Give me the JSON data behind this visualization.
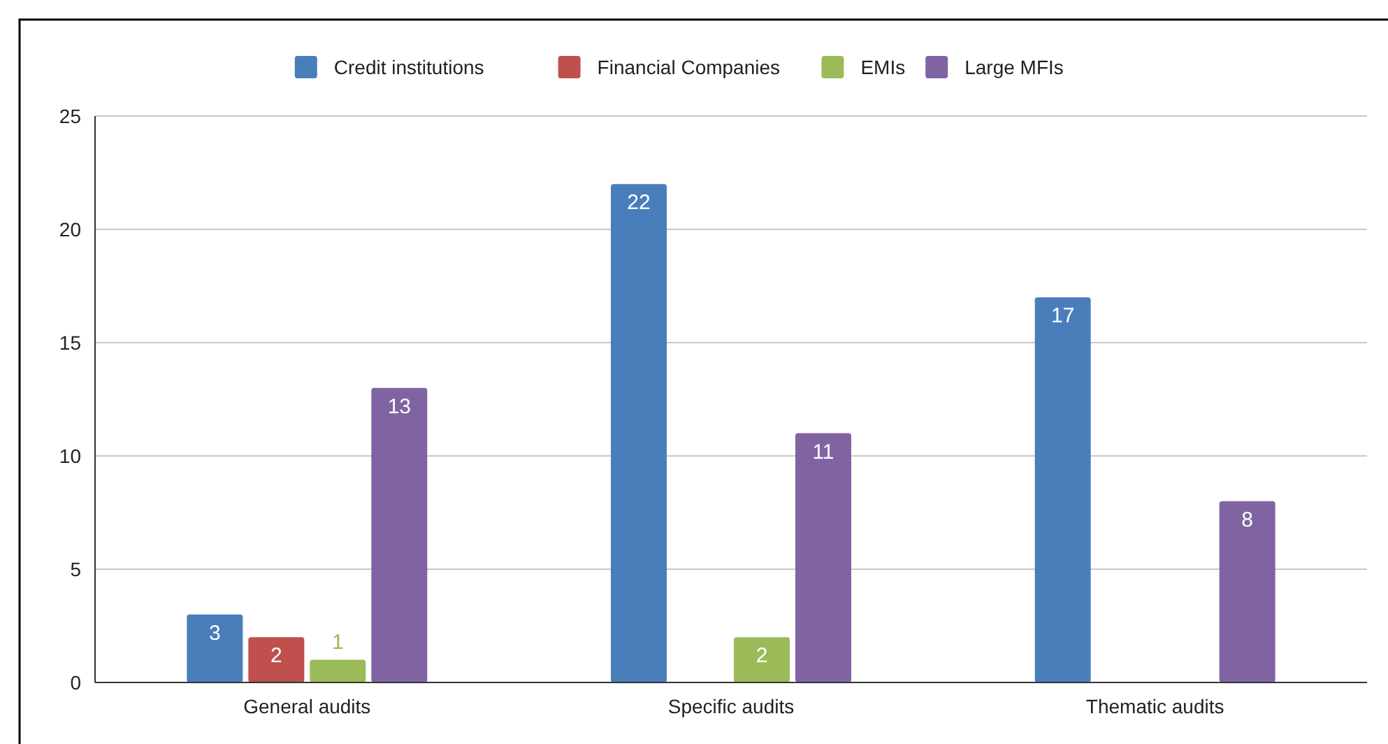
{
  "chart_data": {
    "type": "bar",
    "categories": [
      "General audits",
      "Specific audits",
      "Thematic audits"
    ],
    "series": [
      {
        "name": "Credit institutions",
        "color": "#4a7ebb",
        "values": [
          3,
          22,
          17
        ]
      },
      {
        "name": "Financial Companies",
        "color": "#c0504d",
        "values": [
          2,
          null,
          null
        ]
      },
      {
        "name": "EMIs",
        "color": "#9bbb59",
        "values": [
          1,
          2,
          null
        ]
      },
      {
        "name": "Large MFIs",
        "color": "#8064a2",
        "values": [
          13,
          11,
          8
        ]
      }
    ],
    "ylim": [
      0,
      25
    ],
    "yticks": [
      0,
      5,
      10,
      15,
      20,
      25
    ],
    "grid": "y",
    "legend": "top",
    "data_labels": true
  }
}
